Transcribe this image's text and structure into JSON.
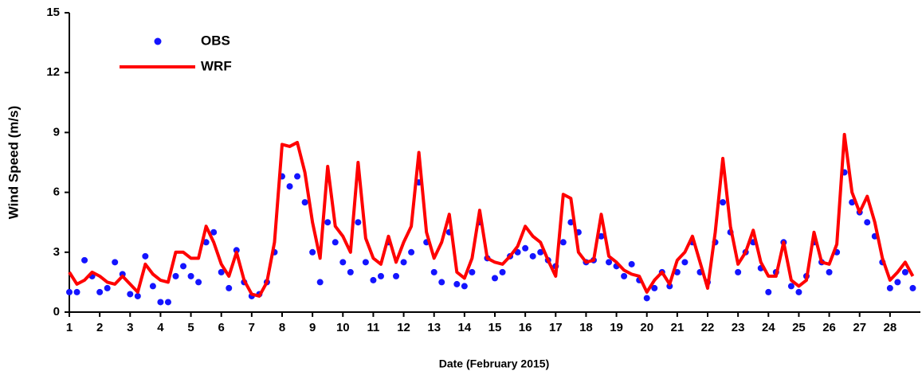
{
  "chart_data": {
    "type": "scatter-line",
    "xlabel": "Date (February 2015)",
    "ylabel": "Wind Speed (m/s)",
    "xlim": [
      1,
      29
    ],
    "ylim": [
      0,
      15
    ],
    "xticks": [
      1,
      2,
      3,
      4,
      5,
      6,
      7,
      8,
      9,
      10,
      11,
      12,
      13,
      14,
      15,
      16,
      17,
      18,
      19,
      20,
      21,
      22,
      23,
      24,
      25,
      26,
      27,
      28
    ],
    "yticks": [
      0,
      3,
      6,
      9,
      12,
      15
    ],
    "x": [
      1,
      1.25,
      1.5,
      1.75,
      2,
      2.25,
      2.5,
      2.75,
      3,
      3.25,
      3.5,
      3.75,
      4,
      4.25,
      4.5,
      4.75,
      5,
      5.25,
      5.5,
      5.75,
      6,
      6.25,
      6.5,
      6.75,
      7,
      7.25,
      7.5,
      7.75,
      8,
      8.25,
      8.5,
      8.75,
      9,
      9.25,
      9.5,
      9.75,
      10,
      10.25,
      10.5,
      10.75,
      11,
      11.25,
      11.5,
      11.75,
      12,
      12.25,
      12.5,
      12.75,
      13,
      13.25,
      13.5,
      13.75,
      14,
      14.25,
      14.5,
      14.75,
      15,
      15.25,
      15.5,
      15.75,
      16,
      16.25,
      16.5,
      16.75,
      17,
      17.25,
      17.5,
      17.75,
      18,
      18.25,
      18.5,
      18.75,
      19,
      19.25,
      19.5,
      19.75,
      20,
      20.25,
      20.5,
      20.75,
      21,
      21.25,
      21.5,
      21.75,
      22,
      22.25,
      22.5,
      22.75,
      23,
      23.25,
      23.5,
      23.75,
      24,
      24.25,
      24.5,
      24.75,
      25,
      25.25,
      25.5,
      25.75,
      26,
      26.25,
      26.5,
      26.75,
      27,
      27.25,
      27.5,
      27.75,
      28,
      28.25,
      28.5,
      28.75
    ],
    "series": [
      {
        "name": "OBS",
        "color": "#1414ff",
        "style": "dots",
        "values": [
          1.0,
          1.0,
          2.6,
          1.8,
          1.0,
          1.2,
          2.5,
          1.9,
          0.9,
          0.8,
          2.8,
          1.3,
          0.5,
          0.5,
          1.8,
          2.3,
          1.8,
          1.5,
          3.5,
          4.0,
          2.0,
          1.2,
          3.1,
          1.5,
          0.8,
          0.9,
          1.5,
          3.0,
          6.8,
          6.3,
          6.8,
          5.5,
          3.0,
          1.5,
          4.5,
          3.5,
          2.5,
          2.0,
          4.5,
          2.5,
          1.6,
          1.8,
          3.5,
          1.8,
          2.5,
          3.0,
          6.5,
          3.5,
          2.0,
          1.5,
          4.0,
          1.4,
          1.3,
          2.0,
          4.5,
          2.7,
          1.7,
          2.0,
          2.8,
          3.0,
          3.2,
          2.8,
          3.0,
          2.6,
          2.3,
          3.5,
          4.5,
          4.0,
          2.5,
          2.6,
          3.8,
          2.5,
          2.3,
          1.8,
          2.4,
          1.6,
          0.7,
          1.2,
          2.0,
          1.3,
          2.0,
          2.5,
          3.5,
          2.0,
          1.5,
          3.5,
          5.5,
          4.0,
          2.0,
          3.0,
          3.5,
          2.2,
          1.0,
          2.0,
          3.5,
          1.3,
          1.0,
          1.8,
          3.5,
          2.5,
          2.0,
          3.0,
          7.0,
          5.5,
          5.0,
          4.5,
          3.8,
          2.5,
          1.2,
          1.5,
          2.0,
          1.2
        ]
      },
      {
        "name": "WRF",
        "color": "#ff0000",
        "style": "line",
        "values": [
          2.0,
          1.4,
          1.6,
          2.0,
          1.8,
          1.5,
          1.4,
          1.8,
          1.4,
          1.0,
          2.4,
          1.9,
          1.6,
          1.5,
          3.0,
          3.0,
          2.7,
          2.7,
          4.3,
          3.5,
          2.4,
          1.8,
          3.0,
          1.6,
          0.9,
          0.8,
          1.5,
          3.5,
          8.4,
          8.3,
          8.5,
          7.0,
          4.5,
          2.7,
          7.3,
          4.3,
          3.8,
          3.0,
          7.5,
          3.7,
          2.7,
          2.4,
          3.8,
          2.5,
          3.5,
          4.3,
          8.0,
          4.0,
          2.7,
          3.5,
          4.9,
          2.0,
          1.7,
          2.7,
          5.1,
          2.7,
          2.5,
          2.4,
          2.8,
          3.3,
          4.3,
          3.8,
          3.5,
          2.6,
          1.8,
          5.9,
          5.7,
          3.0,
          2.5,
          2.6,
          4.9,
          2.8,
          2.5,
          2.1,
          1.9,
          1.8,
          1.0,
          1.6,
          2.0,
          1.4,
          2.6,
          3.0,
          3.8,
          2.5,
          1.2,
          4.0,
          7.7,
          4.3,
          2.4,
          3.0,
          4.1,
          2.5,
          1.8,
          1.8,
          3.5,
          1.6,
          1.3,
          1.6,
          4.0,
          2.5,
          2.4,
          3.4,
          8.9,
          6.0,
          5.0,
          5.8,
          4.5,
          2.7,
          1.6,
          2.0,
          2.5,
          1.8
        ]
      }
    ]
  }
}
